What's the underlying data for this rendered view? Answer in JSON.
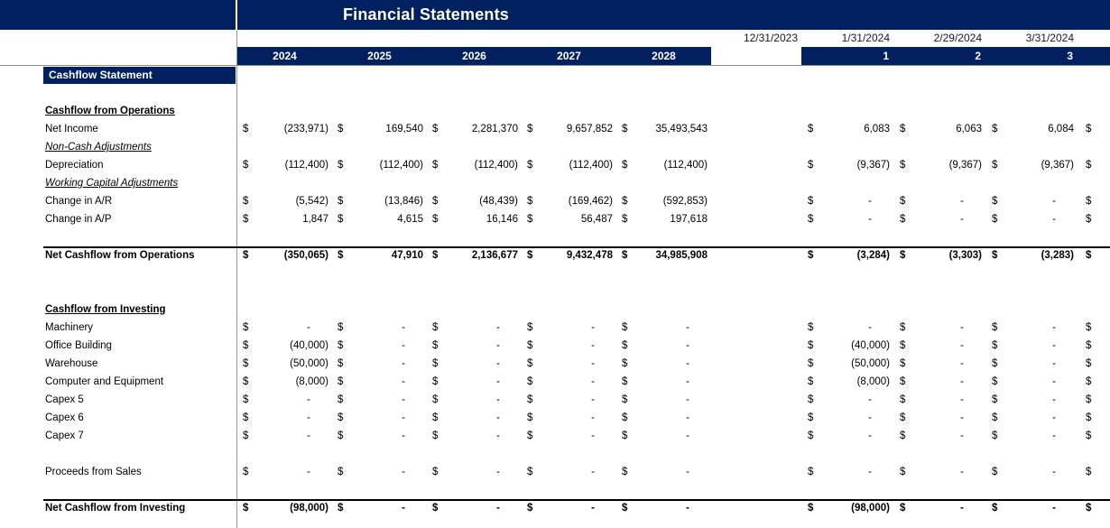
{
  "title": "Financial Statements",
  "section_title": "Cashflow Statement",
  "currency_symbol": "$",
  "colors": {
    "navy": "#002060",
    "gridline": "#8c8c8c",
    "total_border": "#000000"
  },
  "header": {
    "years": [
      "2024",
      "2025",
      "2026",
      "2027",
      "2028"
    ],
    "dates": [
      "12/31/2023",
      "1/31/2024",
      "2/29/2024",
      "3/31/2024"
    ],
    "periods": [
      "1",
      "2",
      "3"
    ]
  },
  "rows": [
    {
      "kind": "section-navy",
      "label": "Cashflow Statement"
    },
    {
      "kind": "blank"
    },
    {
      "kind": "heading",
      "label": "Cashflow from Operations"
    },
    {
      "kind": "data",
      "label": "Net Income",
      "years": [
        "(233,971)",
        "169,540",
        "2,281,370",
        "9,657,852",
        "35,493,543"
      ],
      "months": [
        "6,083",
        "6,063",
        "6,084"
      ]
    },
    {
      "kind": "subheading",
      "label": "Non-Cash Adjustments"
    },
    {
      "kind": "data",
      "label": "Depreciation",
      "years": [
        "(112,400)",
        "(112,400)",
        "(112,400)",
        "(112,400)",
        "(112,400)"
      ],
      "months": [
        "(9,367)",
        "(9,367)",
        "(9,367)"
      ]
    },
    {
      "kind": "subheading",
      "label": "Working Capital Adjustments"
    },
    {
      "kind": "data",
      "label": "Change in A/R",
      "years": [
        "(5,542)",
        "(13,846)",
        "(48,439)",
        "(169,462)",
        "(592,853)"
      ],
      "months": [
        "-",
        "-",
        "-"
      ]
    },
    {
      "kind": "data",
      "label": "Change in A/P",
      "years": [
        "1,847",
        "4,615",
        "16,146",
        "56,487",
        "197,618"
      ],
      "months": [
        "-",
        "-",
        "-"
      ]
    },
    {
      "kind": "blank"
    },
    {
      "kind": "total",
      "label": "Net Cashflow from Operations",
      "years": [
        "(350,065)",
        "47,910",
        "2,136,677",
        "9,432,478",
        "34,985,908"
      ],
      "months": [
        "(3,284)",
        "(3,303)",
        "(3,283)"
      ]
    },
    {
      "kind": "blank"
    },
    {
      "kind": "blank"
    },
    {
      "kind": "heading",
      "label": "Cashflow from Investing"
    },
    {
      "kind": "data",
      "label": "Machinery",
      "years": [
        "-",
        "-",
        "-",
        "-",
        "-"
      ],
      "months": [
        "-",
        "-",
        "-"
      ]
    },
    {
      "kind": "data",
      "label": "Office Building",
      "years": [
        "(40,000)",
        "-",
        "-",
        "-",
        "-"
      ],
      "months": [
        "(40,000)",
        "-",
        "-"
      ]
    },
    {
      "kind": "data",
      "label": "Warehouse",
      "years": [
        "(50,000)",
        "-",
        "-",
        "-",
        "-"
      ],
      "months": [
        "(50,000)",
        "-",
        "-"
      ]
    },
    {
      "kind": "data",
      "label": "Computer and Equipment",
      "years": [
        "(8,000)",
        "-",
        "-",
        "-",
        "-"
      ],
      "months": [
        "(8,000)",
        "-",
        "-"
      ]
    },
    {
      "kind": "data",
      "label": "Capex 5",
      "years": [
        "-",
        "-",
        "-",
        "-",
        "-"
      ],
      "months": [
        "-",
        "-",
        "-"
      ]
    },
    {
      "kind": "data",
      "label": "Capex 6",
      "years": [
        "-",
        "-",
        "-",
        "-",
        "-"
      ],
      "months": [
        "-",
        "-",
        "-"
      ]
    },
    {
      "kind": "data",
      "label": "Capex 7",
      "years": [
        "-",
        "-",
        "-",
        "-",
        "-"
      ],
      "months": [
        "-",
        "-",
        "-"
      ]
    },
    {
      "kind": "blank"
    },
    {
      "kind": "data",
      "label": "Proceeds from Sales",
      "years": [
        "-",
        "-",
        "-",
        "-",
        "-"
      ],
      "months": [
        "-",
        "-",
        "-"
      ]
    },
    {
      "kind": "blank"
    },
    {
      "kind": "total",
      "label": "Net Cashflow from Investing",
      "years": [
        "(98,000)",
        "-",
        "-",
        "-",
        "-"
      ],
      "months": [
        "(98,000)",
        "-",
        "-"
      ]
    }
  ]
}
